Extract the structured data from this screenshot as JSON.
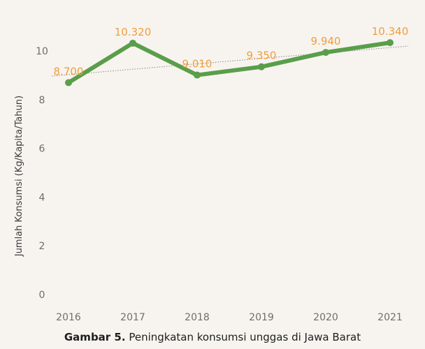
{
  "chart_data": {
    "type": "line",
    "title": "",
    "xlabel": "",
    "ylabel": "Jumlah Konsumsi (Kg/Kapita/Tahun)",
    "categories": [
      "2016",
      "2017",
      "2018",
      "2019",
      "2020",
      "2021"
    ],
    "series": [
      {
        "values": [
          8.7,
          10.32,
          9.01,
          9.35,
          9.94,
          10.34
        ],
        "data_labels": [
          "8.700",
          "10.320",
          "9.010",
          "9.350",
          "9.940",
          "10.340"
        ],
        "color": "#5a9e4b"
      }
    ],
    "trendline": {
      "type": "linear",
      "style": "dotted",
      "color": "#8a8a8a",
      "start": 9.0,
      "end": 10.17
    },
    "ylim": [
      0,
      11
    ],
    "yticks": [
      0,
      2,
      4,
      6,
      8,
      10
    ],
    "grid": false,
    "legend": "none",
    "data_label_color": "#f29d3d"
  },
  "caption": {
    "label": "Gambar 5.",
    "text": " Peningkatan konsumsi unggas di Jawa Barat"
  }
}
